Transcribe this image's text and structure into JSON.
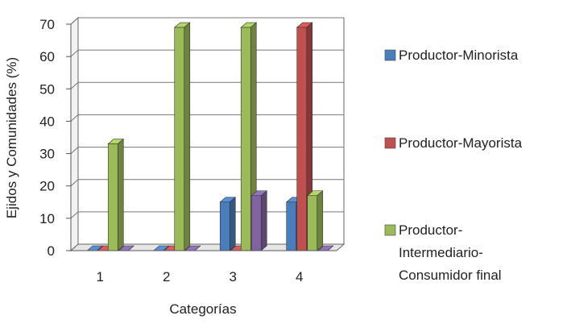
{
  "chart_data": {
    "type": "bar",
    "categories": [
      "1",
      "2",
      "3",
      "4"
    ],
    "xlabel": "Categorías",
    "ylabel": "Ejidos y Comunidades (%)",
    "ylim": [
      0,
      70
    ],
    "yticks": [
      0,
      10,
      20,
      30,
      40,
      50,
      60,
      70
    ],
    "grid": true,
    "legend_position": "right",
    "series": [
      {
        "name": "Productor-Minorista",
        "color": "#4a7ebb",
        "values": [
          0,
          0,
          15,
          15
        ]
      },
      {
        "name": "Productor-Mayorista",
        "color": "#c0504d",
        "values": [
          0,
          0,
          0,
          69
        ]
      },
      {
        "name": "Productor-Intermediario-Consumidor final",
        "color": "#9bbb59",
        "values": [
          33,
          69,
          69,
          17
        ]
      },
      {
        "name": "",
        "color": "#8064a2",
        "values": [
          0,
          0,
          17,
          0
        ]
      }
    ],
    "legend": [
      {
        "lines": [
          "Productor-Minorista"
        ],
        "color": "#4a7ebb"
      },
      {
        "lines": [
          "Productor-Mayorista"
        ],
        "color": "#c0504d"
      },
      {
        "lines": [
          "Productor-",
          "Intermediario-",
          "Consumidor final"
        ],
        "color": "#9bbb59"
      }
    ]
  }
}
